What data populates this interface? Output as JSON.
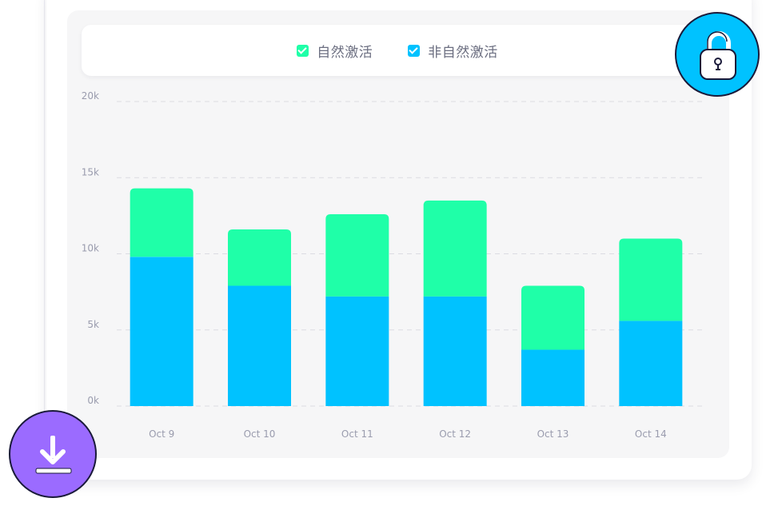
{
  "colors": {
    "organic": "#1fffa8",
    "non_organic": "#00c2ff",
    "lock_button": "#00c2ff",
    "download_button": "#9b6bff"
  },
  "icons": {
    "lock": "lock-icon",
    "download": "download-icon"
  },
  "chart_data": {
    "type": "bar",
    "stacked": true,
    "categories": [
      "Oct 9",
      "Oct 10",
      "Oct 11",
      "Oct 12",
      "Oct 13",
      "Oct 14"
    ],
    "series": [
      {
        "name": "非自然激活",
        "values": [
          9800,
          7900,
          7200,
          7200,
          3700,
          5600
        ]
      },
      {
        "name": "自然激活",
        "values": [
          4500,
          3700,
          5400,
          6300,
          4200,
          5400
        ]
      }
    ],
    "ylim": [
      0,
      20000
    ],
    "y_ticks": [
      {
        "value": 0,
        "label": "0k"
      },
      {
        "value": 5000,
        "label": "5k"
      },
      {
        "value": 10000,
        "label": "10k"
      },
      {
        "value": 15000,
        "label": "15k"
      },
      {
        "value": 20000,
        "label": "20k"
      }
    ],
    "legend": [
      {
        "label": "自然激活",
        "checked": true
      },
      {
        "label": "非自然激活",
        "checked": true
      }
    ],
    "legend_position": "top-center",
    "grid": true,
    "title": "",
    "xlabel": "",
    "ylabel": ""
  }
}
